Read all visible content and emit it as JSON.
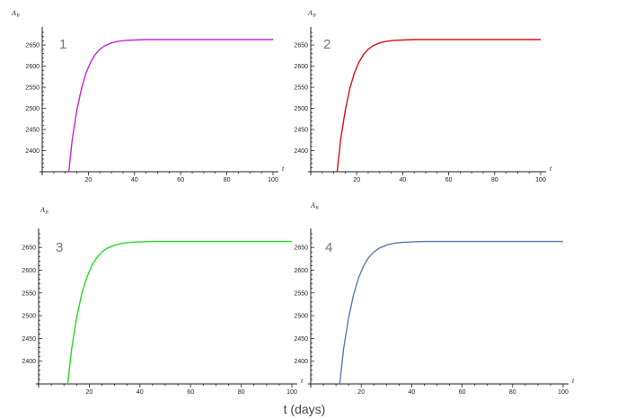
{
  "chart_data": [
    {
      "type": "line",
      "panel_label": "1",
      "ylabel_main": "A",
      "ylabel_sub": "B",
      "xlabel": "t",
      "xlim": [
        0,
        100
      ],
      "ylim": [
        2350,
        2680
      ],
      "xticks": [
        20,
        40,
        60,
        80,
        100
      ],
      "yticks": [
        2400,
        2450,
        2500,
        2550,
        2600,
        2650
      ],
      "color": "#cc22dd",
      "series": [
        {
          "x": [
            11.5,
            13,
            15,
            17,
            19,
            21,
            23,
            25,
            27,
            30,
            33,
            36,
            40,
            45,
            50,
            60,
            70,
            80,
            90,
            100
          ],
          "values": [
            2350,
            2426,
            2495,
            2547,
            2584,
            2610,
            2628,
            2640,
            2648,
            2655,
            2659,
            2661,
            2662,
            2663,
            2663,
            2663,
            2663,
            2663,
            2663,
            2663
          ]
        }
      ]
    },
    {
      "type": "line",
      "panel_label": "2",
      "ylabel_main": "A",
      "ylabel_sub": "B",
      "xlabel": "t",
      "xlim": [
        0,
        100
      ],
      "ylim": [
        2350,
        2680
      ],
      "xticks": [
        20,
        40,
        60,
        80,
        100
      ],
      "yticks": [
        2400,
        2450,
        2500,
        2550,
        2600,
        2650
      ],
      "color": "#dd1111",
      "series": [
        {
          "x": [
            11.5,
            13,
            15,
            17,
            19,
            21,
            23,
            25,
            27,
            30,
            33,
            36,
            40,
            45,
            50,
            60,
            70,
            80,
            90,
            100
          ],
          "values": [
            2350,
            2426,
            2495,
            2547,
            2584,
            2610,
            2628,
            2640,
            2648,
            2655,
            2659,
            2661,
            2662,
            2663,
            2663,
            2663,
            2663,
            2663,
            2663,
            2663
          ]
        }
      ]
    },
    {
      "type": "line",
      "panel_label": "3",
      "ylabel_main": "A",
      "ylabel_sub": "B",
      "xlabel": "t",
      "xlim": [
        0,
        100
      ],
      "ylim": [
        2350,
        2680
      ],
      "xticks": [
        20,
        40,
        60,
        80,
        100
      ],
      "yticks": [
        2400,
        2450,
        2500,
        2550,
        2600,
        2650
      ],
      "color": "#22dd22",
      "series": [
        {
          "x": [
            11.5,
            13,
            15,
            17,
            19,
            21,
            23,
            25,
            27,
            30,
            33,
            36,
            40,
            45,
            50,
            60,
            70,
            80,
            90,
            100
          ],
          "values": [
            2350,
            2426,
            2495,
            2547,
            2584,
            2610,
            2628,
            2640,
            2648,
            2655,
            2659,
            2661,
            2662,
            2663,
            2663,
            2663,
            2663,
            2663,
            2663,
            2663
          ]
        }
      ]
    },
    {
      "type": "line",
      "panel_label": "4",
      "ylabel_main": "A",
      "ylabel_sub": "B",
      "xlabel": "t",
      "xlim": [
        0,
        100
      ],
      "ylim": [
        2350,
        2680
      ],
      "xticks": [
        20,
        40,
        60,
        80,
        100
      ],
      "yticks": [
        2400,
        2450,
        2500,
        2550,
        2600,
        2650
      ],
      "color": "#5b7ab0",
      "series": [
        {
          "x": [
            11.5,
            13,
            15,
            17,
            19,
            21,
            23,
            25,
            27,
            30,
            33,
            36,
            40,
            45,
            50,
            60,
            70,
            80,
            90,
            100
          ],
          "values": [
            2350,
            2426,
            2495,
            2547,
            2584,
            2610,
            2628,
            2640,
            2648,
            2655,
            2659,
            2661,
            2662,
            2663,
            2663,
            2663,
            2663,
            2663,
            2663,
            2663
          ]
        }
      ]
    }
  ],
  "figure": {
    "shared_xlabel": "t (days)"
  }
}
